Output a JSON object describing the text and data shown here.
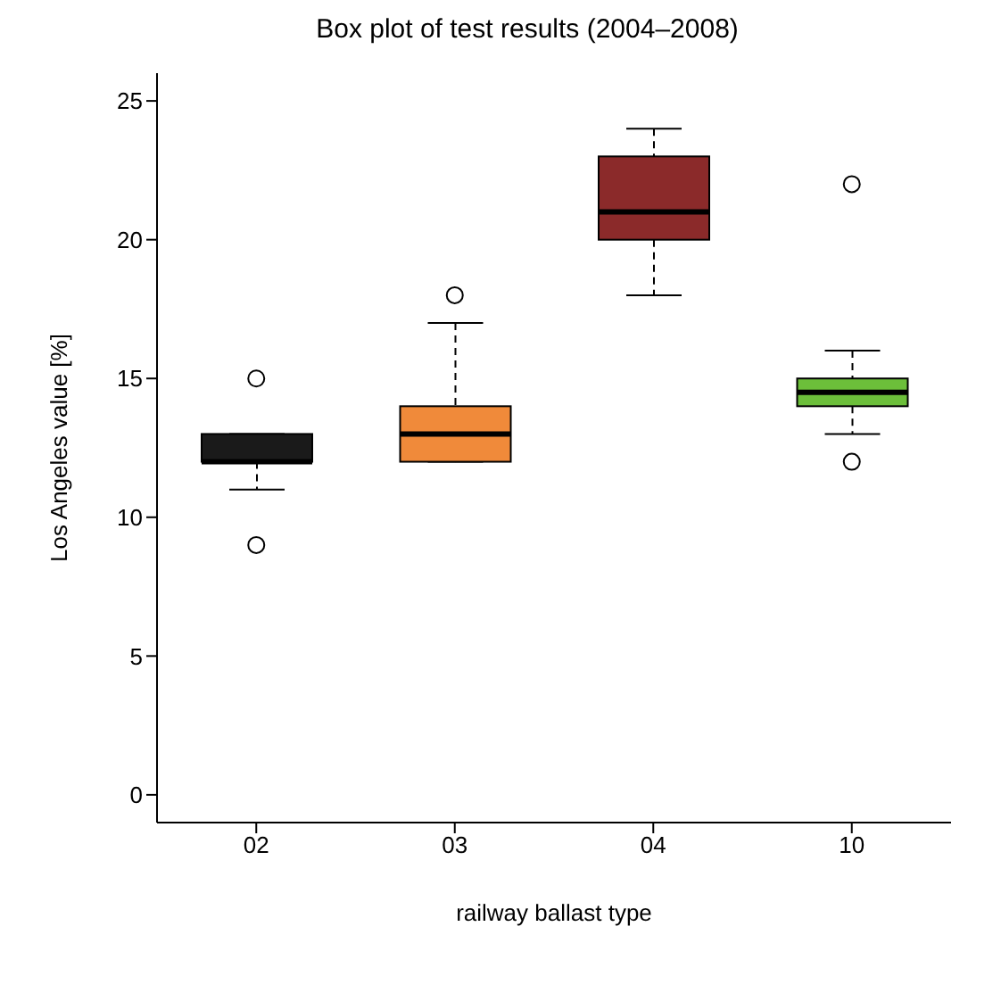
{
  "chart_data": {
    "type": "box",
    "title": "Box plot of test results (2004–2008)",
    "xlabel": "railway ballast type",
    "ylabel": "Los Angeles value [%]",
    "categories": [
      "02",
      "03",
      "04",
      "10"
    ],
    "colors": [
      "#1a1a1a",
      "#f08a3a",
      "#8b2a2a",
      "#6cbf3a"
    ],
    "boxes": [
      {
        "low": 11,
        "q1": 12,
        "median": 12,
        "q3": 13,
        "high": 13,
        "outliers": [
          15,
          9
        ]
      },
      {
        "low": 12,
        "q1": 12,
        "median": 13,
        "q3": 14,
        "high": 17,
        "outliers": [
          18
        ]
      },
      {
        "low": 18,
        "q1": 20,
        "median": 21,
        "q3": 23,
        "high": 24
      },
      {
        "low": 13,
        "q1": 14,
        "median": 14.5,
        "q3": 15,
        "high": 16,
        "outliers": [
          22,
          12
        ]
      }
    ],
    "ylim": [
      -1,
      26
    ],
    "yticks": [
      0,
      5,
      10,
      15,
      20,
      25
    ],
    "grid": false
  }
}
